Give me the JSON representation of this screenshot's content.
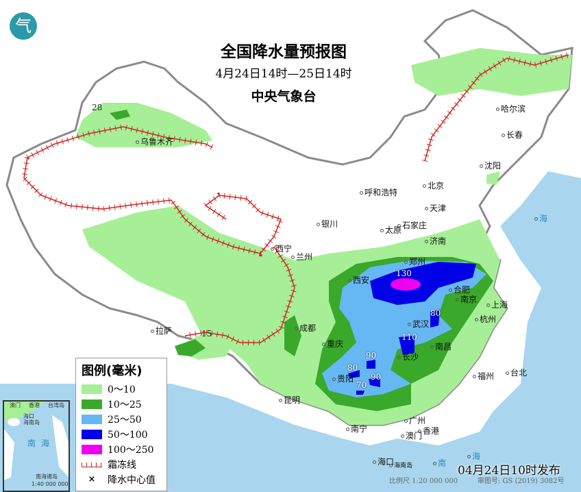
{
  "title": "全国降水量预报图",
  "period": "4月24日14时—25日14时",
  "issuer": "中央气象台",
  "logo_text": "气",
  "legend": {
    "title": "图例(毫米)",
    "items": [
      {
        "label": "0～10",
        "color": "#a6ef96"
      },
      {
        "label": "10～25",
        "color": "#3aa82a"
      },
      {
        "label": "25～50",
        "color": "#66b8f4"
      },
      {
        "label": "50～100",
        "color": "#0000e6"
      },
      {
        "label": "100～250",
        "color": "#f000f0"
      }
    ],
    "frost_line": "霜冻线",
    "center_value": "降水中心值",
    "frost_color": "#d22020"
  },
  "cities": [
    "哈尔滨",
    "长春",
    "沈阳",
    "北京",
    "天津",
    "呼和浩特",
    "石家庄",
    "太原",
    "济南",
    "银川",
    "西宁",
    "兰州",
    "郑州",
    "西安",
    "合肥",
    "南京",
    "上海",
    "杭州",
    "武汉",
    "长沙",
    "南昌",
    "成都",
    "重庆",
    "贵阳",
    "昆明",
    "拉萨",
    "乌鲁木齐",
    "福州",
    "台北",
    "广州",
    "南宁",
    "澳门",
    "香港",
    "海口"
  ],
  "rain_centers": [
    "28",
    "15",
    "130",
    "80",
    "110",
    "90",
    "80",
    "90",
    "70"
  ],
  "sea_labels": [
    "海",
    "南",
    "海"
  ],
  "island_label": "海南岛",
  "inset": {
    "sea": "南海",
    "islands": "南海诸岛",
    "scale": "1:40 000 000",
    "places": [
      "海口",
      "海南岛",
      "澳门",
      "香港",
      "台湾岛"
    ]
  },
  "publish": "04月24日10时发布",
  "scale": "比例尺 1:20 000 000",
  "review": "审图号: GS (2019) 3082号"
}
